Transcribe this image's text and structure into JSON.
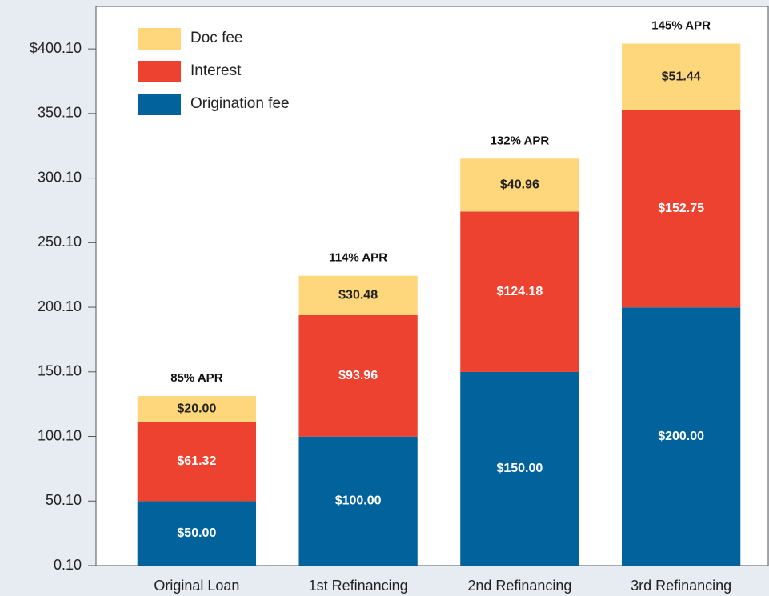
{
  "chart_data": {
    "type": "bar",
    "stacked": true,
    "categories": [
      "Original Loan",
      "1st Refinancing",
      "2nd Refinancing",
      "3rd Refinancing"
    ],
    "series": [
      {
        "name": "Origination fee",
        "color": "#02629b",
        "values": [
          50,
          100,
          150,
          200
        ],
        "value_labels": [
          "$50.00",
          "$100.00",
          "$150.00",
          "$200.00"
        ]
      },
      {
        "name": "Interest",
        "color": "#ee4230",
        "values": [
          61.32,
          93.96,
          124.18,
          152.75
        ],
        "value_labels": [
          "$61.32",
          "$93.96",
          "$124.18",
          "$152.75"
        ]
      },
      {
        "name": "Doc fee",
        "color": "#fed67b",
        "values": [
          20,
          30.48,
          40.96,
          51.44
        ],
        "value_labels": [
          "$20.00",
          "$30.48",
          "$40.96",
          "$51.44"
        ]
      }
    ],
    "annotations": [
      "85% APR",
      "114% APR",
      "132% APR",
      "145% APR"
    ],
    "ylim": [
      0.1,
      433
    ],
    "yticks": [
      {
        "value": 0.1,
        "label": "0.10"
      },
      {
        "value": 50.1,
        "label": "50.10"
      },
      {
        "value": 100.1,
        "label": "100.10"
      },
      {
        "value": 150.1,
        "label": "150.10"
      },
      {
        "value": 200.1,
        "label": "200.10"
      },
      {
        "value": 250.1,
        "label": "250.10"
      },
      {
        "value": 300.1,
        "label": "300.10"
      },
      {
        "value": 350.1,
        "label": "350.10"
      },
      {
        "value": 400.1,
        "label": "$400.10"
      }
    ],
    "legend": "upper left"
  }
}
